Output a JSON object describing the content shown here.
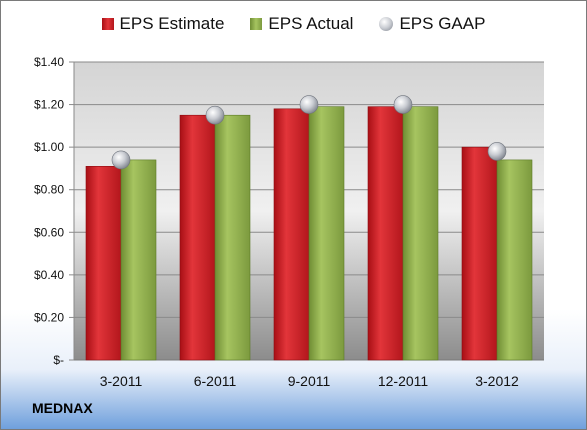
{
  "chart_data": {
    "type": "bar",
    "categories": [
      "3-2011",
      "6-2011",
      "9-2011",
      "12-2011",
      "3-2012"
    ],
    "series": [
      {
        "name": "EPS Estimate",
        "values": [
          0.91,
          1.15,
          1.18,
          1.19,
          1.0
        ],
        "color": "#c8161d",
        "style": "bar"
      },
      {
        "name": "EPS Actual",
        "values": [
          0.94,
          1.15,
          1.19,
          1.19,
          0.94
        ],
        "color": "#8fae4b",
        "style": "bar"
      },
      {
        "name": "EPS GAAP",
        "values": [
          0.94,
          1.15,
          1.2,
          1.2,
          0.98
        ],
        "color": "#b9bcc4",
        "style": "marker"
      }
    ],
    "y_ticks": [
      {
        "value": 0,
        "label": "$-"
      },
      {
        "value": 0.2,
        "label": "$0.20"
      },
      {
        "value": 0.4,
        "label": "$0.40"
      },
      {
        "value": 0.6,
        "label": "$0.60"
      },
      {
        "value": 0.8,
        "label": "$0.80"
      },
      {
        "value": 1.0,
        "label": "$1.00"
      },
      {
        "value": 1.2,
        "label": "$1.20"
      },
      {
        "value": 1.4,
        "label": "$1.40"
      }
    ],
    "ylim": [
      0,
      1.4
    ],
    "grid": true,
    "legend": "top"
  },
  "company": "MEDNAX"
}
